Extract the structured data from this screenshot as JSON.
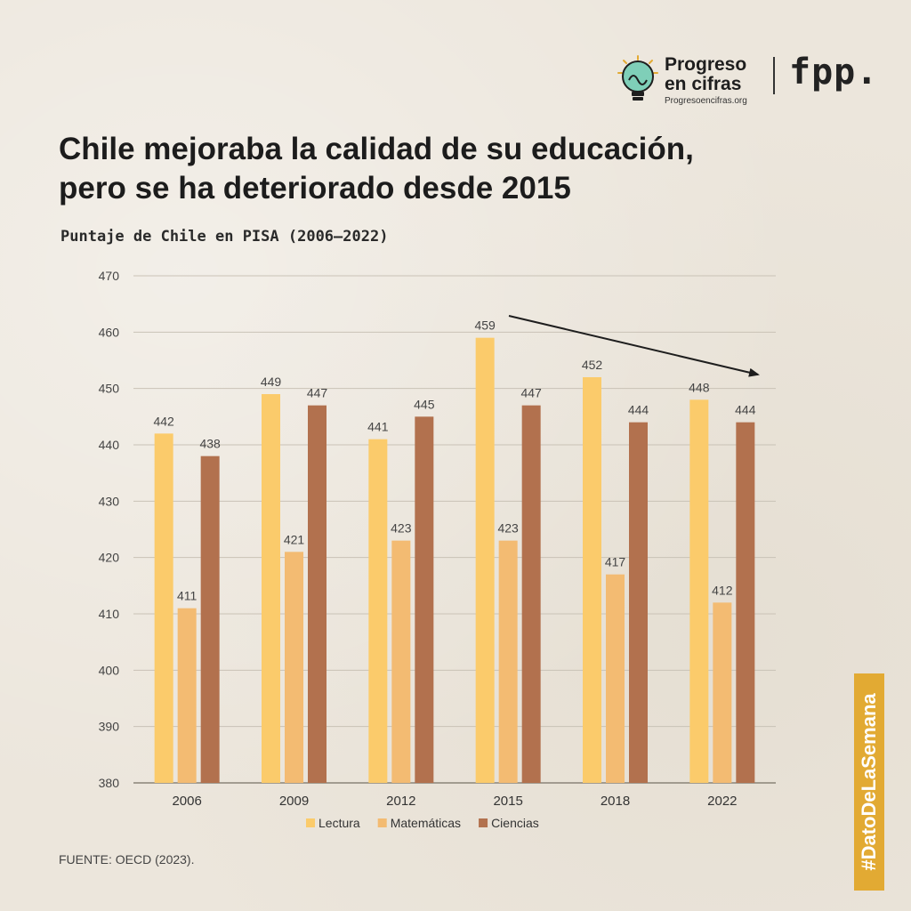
{
  "brand": {
    "name_line1": "Progreso",
    "name_line2": "en cifras",
    "url": "Progresoencifras.org",
    "partner": "fpp."
  },
  "title_line1": "Chile mejoraba la calidad de su educación,",
  "title_line2": "pero se ha deteriorado desde 2015",
  "subtitle": "Puntaje de Chile en PISA (2006–2022)",
  "source": "FUENTE: OECD (2023).",
  "hashtag": "#DatoDeLaSemana",
  "colors": {
    "lectura": "#fbcb6b",
    "matematicas": "#f3bb72",
    "ciencias": "#b2714e",
    "grid": "#c9c2b6",
    "axis": "#8a8478",
    "label": "#444444",
    "hashtag_bg": "#e2aa33"
  },
  "chart_data": {
    "type": "bar",
    "title": "Puntaje de Chile en PISA (2006–2022)",
    "categories": [
      "2006",
      "2009",
      "2012",
      "2015",
      "2018",
      "2022"
    ],
    "series": [
      {
        "name": "Lectura",
        "values": [
          442,
          449,
          441,
          459,
          452,
          448
        ]
      },
      {
        "name": "Matemáticas",
        "values": [
          411,
          421,
          423,
          423,
          417,
          412
        ]
      },
      {
        "name": "Ciencias",
        "values": [
          438,
          447,
          445,
          447,
          444,
          444
        ]
      }
    ],
    "ylim": [
      380,
      470
    ],
    "yticks": [
      380,
      390,
      400,
      410,
      420,
      430,
      440,
      450,
      460,
      470
    ],
    "xlabel": "",
    "ylabel": "",
    "legend": "bottom-center",
    "grid": true,
    "annotation": "downward trend arrow from 2015 to 2022"
  }
}
